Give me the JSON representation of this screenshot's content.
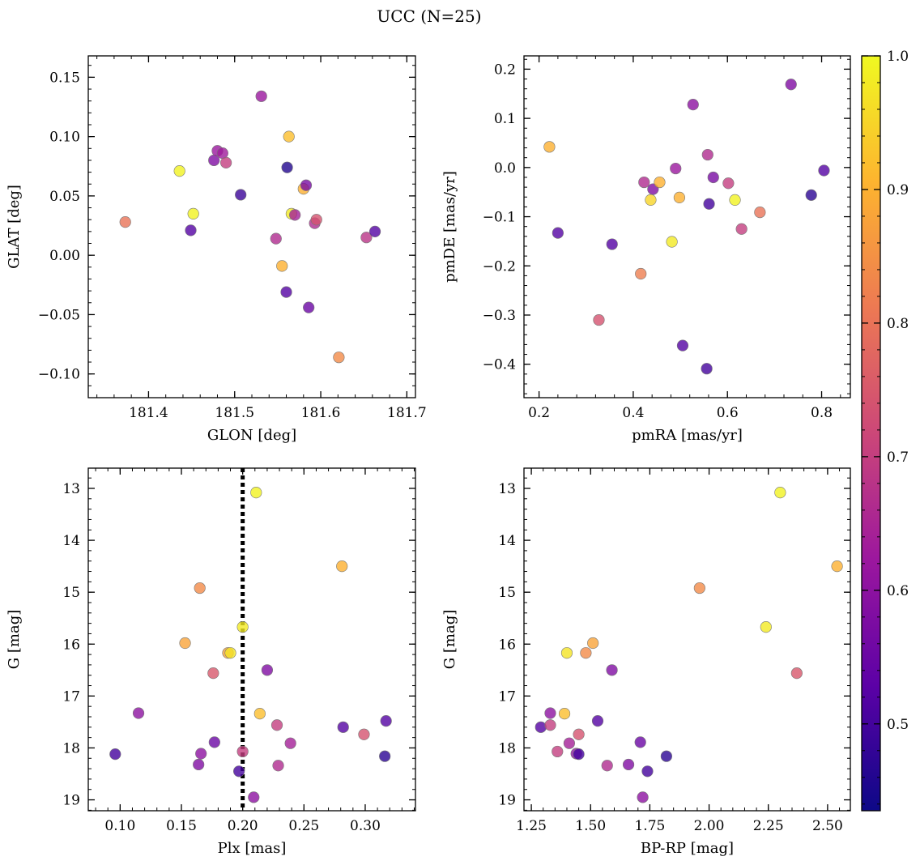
{
  "figure": {
    "title": "UCC (N=25)"
  },
  "colormap": {
    "name": "plasma",
    "stops": [
      "#0d0887",
      "#5c01a6",
      "#9c179e",
      "#cc4778",
      "#ed7953",
      "#fdb42f",
      "#f0f921"
    ],
    "range": [
      0.435,
      1.0
    ],
    "ticks": [
      0.5,
      0.6,
      0.7,
      0.8,
      0.9,
      1.0
    ],
    "tick_labels": [
      "0.5",
      "0.6",
      "0.7",
      "0.8",
      "0.9",
      "1.0"
    ]
  },
  "chart_data": [
    {
      "type": "scatter",
      "id": "glon-glat",
      "xlabel": "GLON [deg]",
      "ylabel": "GLAT [deg]",
      "xlim": [
        181.33,
        181.71
      ],
      "ylim": [
        -0.12,
        0.168
      ],
      "xticks": [
        181.4,
        181.5,
        181.6,
        181.7
      ],
      "xtick_labels": [
        "181.4",
        "181.5",
        "181.6",
        "181.7"
      ],
      "yticks": [
        -0.1,
        -0.05,
        0.0,
        0.05,
        0.1,
        0.15
      ],
      "ytick_labels": [
        "−0.10",
        "−0.05",
        "0.00",
        "0.05",
        "0.10",
        "0.15"
      ],
      "invert_y": false,
      "points": [
        {
          "x": 181.373,
          "y": 0.028,
          "c": 0.8
        },
        {
          "x": 181.436,
          "y": 0.071,
          "c": 0.99
        },
        {
          "x": 181.449,
          "y": 0.021,
          "c": 0.52
        },
        {
          "x": 181.452,
          "y": 0.035,
          "c": 0.99
        },
        {
          "x": 181.476,
          "y": 0.08,
          "c": 0.58
        },
        {
          "x": 181.48,
          "y": 0.088,
          "c": 0.62
        },
        {
          "x": 181.486,
          "y": 0.086,
          "c": 0.63
        },
        {
          "x": 181.49,
          "y": 0.078,
          "c": 0.7
        },
        {
          "x": 181.507,
          "y": 0.051,
          "c": 0.49
        },
        {
          "x": 181.531,
          "y": 0.134,
          "c": 0.62
        },
        {
          "x": 181.548,
          "y": 0.014,
          "c": 0.66
        },
        {
          "x": 181.555,
          "y": -0.009,
          "c": 0.9
        },
        {
          "x": 181.56,
          "y": -0.031,
          "c": 0.52
        },
        {
          "x": 181.561,
          "y": 0.074,
          "c": 0.46
        },
        {
          "x": 181.563,
          "y": 0.1,
          "c": 0.92
        },
        {
          "x": 181.566,
          "y": 0.035,
          "c": 0.98
        },
        {
          "x": 181.57,
          "y": 0.034,
          "c": 0.64
        },
        {
          "x": 181.58,
          "y": 0.056,
          "c": 0.9
        },
        {
          "x": 181.583,
          "y": 0.059,
          "c": 0.57
        },
        {
          "x": 181.586,
          "y": -0.044,
          "c": 0.55
        },
        {
          "x": 181.593,
          "y": 0.027,
          "c": 0.66
        },
        {
          "x": 181.595,
          "y": 0.03,
          "c": 0.74
        },
        {
          "x": 181.621,
          "y": -0.086,
          "c": 0.84
        },
        {
          "x": 181.653,
          "y": 0.015,
          "c": 0.68
        },
        {
          "x": 181.663,
          "y": 0.02,
          "c": 0.52
        }
      ]
    },
    {
      "type": "scatter",
      "id": "pmra-pmde",
      "xlabel": "pmRA [mas/yr]",
      "ylabel": "pmDE [mas/yr]",
      "xlim": [
        0.168,
        0.861
      ],
      "ylim": [
        -0.468,
        0.227
      ],
      "xticks": [
        0.2,
        0.4,
        0.6,
        0.8
      ],
      "xtick_labels": [
        "0.2",
        "0.4",
        "0.6",
        "0.8"
      ],
      "yticks": [
        -0.4,
        -0.3,
        -0.2,
        -0.1,
        0.0,
        0.1,
        0.2
      ],
      "ytick_labels": [
        "−0.4",
        "−0.3",
        "−0.2",
        "−0.1",
        "0.0",
        "0.1",
        "0.2"
      ],
      "invert_y": false,
      "points": [
        {
          "x": 0.222,
          "y": 0.042,
          "c": 0.9
        },
        {
          "x": 0.24,
          "y": -0.133,
          "c": 0.52
        },
        {
          "x": 0.327,
          "y": -0.31,
          "c": 0.74
        },
        {
          "x": 0.355,
          "y": -0.156,
          "c": 0.52
        },
        {
          "x": 0.416,
          "y": -0.216,
          "c": 0.82
        },
        {
          "x": 0.423,
          "y": -0.03,
          "c": 0.66
        },
        {
          "x": 0.437,
          "y": -0.066,
          "c": 0.95
        },
        {
          "x": 0.442,
          "y": -0.044,
          "c": 0.58
        },
        {
          "x": 0.456,
          "y": -0.03,
          "c": 0.9
        },
        {
          "x": 0.482,
          "y": -0.151,
          "c": 0.98
        },
        {
          "x": 0.49,
          "y": -0.002,
          "c": 0.62
        },
        {
          "x": 0.498,
          "y": -0.061,
          "c": 0.9
        },
        {
          "x": 0.505,
          "y": -0.362,
          "c": 0.52
        },
        {
          "x": 0.527,
          "y": 0.128,
          "c": 0.6
        },
        {
          "x": 0.556,
          "y": -0.409,
          "c": 0.5
        },
        {
          "x": 0.558,
          "y": 0.026,
          "c": 0.66
        },
        {
          "x": 0.561,
          "y": -0.074,
          "c": 0.5
        },
        {
          "x": 0.57,
          "y": -0.02,
          "c": 0.57
        },
        {
          "x": 0.602,
          "y": -0.032,
          "c": 0.7
        },
        {
          "x": 0.616,
          "y": -0.066,
          "c": 0.99
        },
        {
          "x": 0.63,
          "y": -0.125,
          "c": 0.7
        },
        {
          "x": 0.669,
          "y": -0.091,
          "c": 0.8
        },
        {
          "x": 0.735,
          "y": 0.169,
          "c": 0.58
        },
        {
          "x": 0.778,
          "y": -0.056,
          "c": 0.47
        },
        {
          "x": 0.805,
          "y": -0.006,
          "c": 0.52
        }
      ]
    },
    {
      "type": "scatter",
      "id": "plx-g",
      "xlabel": "Plx [mas]",
      "ylabel": "G [mag]",
      "xlim": [
        0.074,
        0.341
      ],
      "ylim": [
        19.21,
        12.61
      ],
      "xticks": [
        0.1,
        0.15,
        0.2,
        0.25,
        0.3
      ],
      "xtick_labels": [
        "0.10",
        "0.15",
        "0.20",
        "0.25",
        "0.30"
      ],
      "yticks": [
        13,
        14,
        15,
        16,
        17,
        18,
        19
      ],
      "ytick_labels": [
        "13",
        "14",
        "15",
        "16",
        "17",
        "18",
        "19"
      ],
      "invert_y": true,
      "vline": {
        "x": 0.2,
        "style": "dotted"
      },
      "points": [
        {
          "x": 0.096,
          "y": 18.12,
          "c": 0.5
        },
        {
          "x": 0.115,
          "y": 17.33,
          "c": 0.6
        },
        {
          "x": 0.153,
          "y": 15.98,
          "c": 0.88
        },
        {
          "x": 0.164,
          "y": 18.32,
          "c": 0.58
        },
        {
          "x": 0.165,
          "y": 14.92,
          "c": 0.84
        },
        {
          "x": 0.166,
          "y": 18.11,
          "c": 0.6
        },
        {
          "x": 0.176,
          "y": 16.56,
          "c": 0.75
        },
        {
          "x": 0.177,
          "y": 17.89,
          "c": 0.55
        },
        {
          "x": 0.188,
          "y": 16.17,
          "c": 0.88
        },
        {
          "x": 0.19,
          "y": 16.17,
          "c": 0.97
        },
        {
          "x": 0.197,
          "y": 18.45,
          "c": 0.5
        },
        {
          "x": 0.2,
          "y": 15.67,
          "c": 0.98
        },
        {
          "x": 0.2,
          "y": 18.07,
          "c": 0.7
        },
        {
          "x": 0.209,
          "y": 18.95,
          "c": 0.6
        },
        {
          "x": 0.211,
          "y": 13.08,
          "c": 0.99
        },
        {
          "x": 0.214,
          "y": 17.34,
          "c": 0.92
        },
        {
          "x": 0.22,
          "y": 16.5,
          "c": 0.58
        },
        {
          "x": 0.228,
          "y": 17.56,
          "c": 0.7
        },
        {
          "x": 0.229,
          "y": 18.34,
          "c": 0.66
        },
        {
          "x": 0.239,
          "y": 17.91,
          "c": 0.64
        },
        {
          "x": 0.281,
          "y": 14.5,
          "c": 0.9
        },
        {
          "x": 0.282,
          "y": 17.6,
          "c": 0.52
        },
        {
          "x": 0.299,
          "y": 17.74,
          "c": 0.74
        },
        {
          "x": 0.316,
          "y": 18.16,
          "c": 0.47
        },
        {
          "x": 0.317,
          "y": 17.48,
          "c": 0.52
        }
      ]
    },
    {
      "type": "scatter",
      "id": "bprp-g",
      "xlabel": "BP-RP [mag]",
      "ylabel": "G [mag]",
      "xlim": [
        1.219,
        2.596
      ],
      "ylim": [
        19.21,
        12.61
      ],
      "xticks": [
        1.25,
        1.5,
        1.75,
        2.0,
        2.25,
        2.5
      ],
      "xtick_labels": [
        "1.25",
        "1.50",
        "1.75",
        "2.00",
        "2.25",
        "2.50"
      ],
      "yticks": [
        13,
        14,
        15,
        16,
        17,
        18,
        19
      ],
      "ytick_labels": [
        "13",
        "14",
        "15",
        "16",
        "17",
        "18",
        "19"
      ],
      "invert_y": true,
      "points": [
        {
          "x": 1.29,
          "y": 17.6,
          "c": 0.52
        },
        {
          "x": 1.33,
          "y": 17.33,
          "c": 0.6
        },
        {
          "x": 1.33,
          "y": 17.56,
          "c": 0.7
        },
        {
          "x": 1.36,
          "y": 18.07,
          "c": 0.7
        },
        {
          "x": 1.39,
          "y": 17.34,
          "c": 0.92
        },
        {
          "x": 1.4,
          "y": 16.17,
          "c": 0.97
        },
        {
          "x": 1.41,
          "y": 17.91,
          "c": 0.64
        },
        {
          "x": 1.44,
          "y": 18.11,
          "c": 0.6
        },
        {
          "x": 1.45,
          "y": 18.12,
          "c": 0.5
        },
        {
          "x": 1.45,
          "y": 17.74,
          "c": 0.74
        },
        {
          "x": 1.48,
          "y": 16.17,
          "c": 0.84
        },
        {
          "x": 1.51,
          "y": 15.98,
          "c": 0.88
        },
        {
          "x": 1.53,
          "y": 17.48,
          "c": 0.52
        },
        {
          "x": 1.57,
          "y": 18.34,
          "c": 0.66
        },
        {
          "x": 1.59,
          "y": 16.5,
          "c": 0.58
        },
        {
          "x": 1.66,
          "y": 18.32,
          "c": 0.58
        },
        {
          "x": 1.71,
          "y": 17.89,
          "c": 0.55
        },
        {
          "x": 1.72,
          "y": 18.95,
          "c": 0.6
        },
        {
          "x": 1.74,
          "y": 18.45,
          "c": 0.5
        },
        {
          "x": 1.82,
          "y": 18.16,
          "c": 0.47
        },
        {
          "x": 1.96,
          "y": 14.92,
          "c": 0.84
        },
        {
          "x": 2.24,
          "y": 15.67,
          "c": 0.98
        },
        {
          "x": 2.3,
          "y": 13.08,
          "c": 0.99
        },
        {
          "x": 2.37,
          "y": 16.56,
          "c": 0.75
        },
        {
          "x": 2.54,
          "y": 14.5,
          "c": 0.9
        }
      ]
    }
  ]
}
